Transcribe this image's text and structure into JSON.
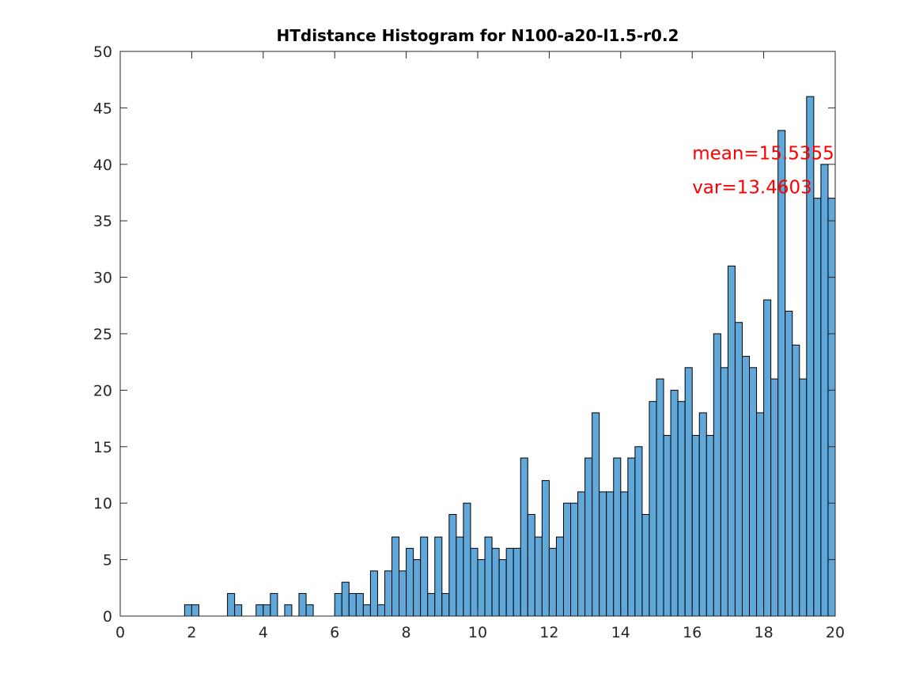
{
  "chart_data": {
    "type": "bar",
    "title": "HTdistance Histogram for N100-a20-l1.5-r0.2",
    "xlabel": "",
    "ylabel": "",
    "xlim": [
      0,
      20
    ],
    "ylim": [
      0,
      50
    ],
    "xticks": [
      0,
      2,
      4,
      6,
      8,
      10,
      12,
      14,
      16,
      18,
      20
    ],
    "yticks": [
      0,
      5,
      10,
      15,
      20,
      25,
      30,
      35,
      40,
      45,
      50
    ],
    "bin_width": 0.2,
    "bins": [
      {
        "x0": 1.8,
        "value": 1
      },
      {
        "x0": 2.0,
        "value": 1
      },
      {
        "x0": 3.0,
        "value": 2
      },
      {
        "x0": 3.2,
        "value": 1
      },
      {
        "x0": 3.8,
        "value": 1
      },
      {
        "x0": 4.0,
        "value": 1
      },
      {
        "x0": 4.2,
        "value": 2
      },
      {
        "x0": 4.6,
        "value": 1
      },
      {
        "x0": 5.0,
        "value": 2
      },
      {
        "x0": 5.2,
        "value": 1
      },
      {
        "x0": 6.0,
        "value": 2
      },
      {
        "x0": 6.2,
        "value": 3
      },
      {
        "x0": 6.4,
        "value": 2
      },
      {
        "x0": 6.6,
        "value": 2
      },
      {
        "x0": 6.8,
        "value": 1
      },
      {
        "x0": 7.0,
        "value": 4
      },
      {
        "x0": 7.2,
        "value": 1
      },
      {
        "x0": 7.4,
        "value": 4
      },
      {
        "x0": 7.6,
        "value": 7
      },
      {
        "x0": 7.8,
        "value": 4
      },
      {
        "x0": 8.0,
        "value": 6
      },
      {
        "x0": 8.2,
        "value": 5
      },
      {
        "x0": 8.4,
        "value": 7
      },
      {
        "x0": 8.6,
        "value": 2
      },
      {
        "x0": 8.8,
        "value": 7
      },
      {
        "x0": 9.0,
        "value": 2
      },
      {
        "x0": 9.2,
        "value": 9
      },
      {
        "x0": 9.4,
        "value": 7
      },
      {
        "x0": 9.6,
        "value": 10
      },
      {
        "x0": 9.8,
        "value": 6
      },
      {
        "x0": 10.0,
        "value": 5
      },
      {
        "x0": 10.2,
        "value": 7
      },
      {
        "x0": 10.4,
        "value": 6
      },
      {
        "x0": 10.6,
        "value": 5
      },
      {
        "x0": 10.8,
        "value": 6
      },
      {
        "x0": 11.0,
        "value": 6
      },
      {
        "x0": 11.2,
        "value": 14
      },
      {
        "x0": 11.4,
        "value": 9
      },
      {
        "x0": 11.6,
        "value": 7
      },
      {
        "x0": 11.8,
        "value": 12
      },
      {
        "x0": 12.0,
        "value": 6
      },
      {
        "x0": 12.2,
        "value": 7
      },
      {
        "x0": 12.4,
        "value": 10
      },
      {
        "x0": 12.6,
        "value": 10
      },
      {
        "x0": 12.8,
        "value": 11
      },
      {
        "x0": 13.0,
        "value": 14
      },
      {
        "x0": 13.2,
        "value": 18
      },
      {
        "x0": 13.4,
        "value": 11
      },
      {
        "x0": 13.6,
        "value": 11
      },
      {
        "x0": 13.8,
        "value": 14
      },
      {
        "x0": 14.0,
        "value": 11
      },
      {
        "x0": 14.2,
        "value": 14
      },
      {
        "x0": 14.4,
        "value": 15
      },
      {
        "x0": 14.6,
        "value": 9
      },
      {
        "x0": 14.8,
        "value": 19
      },
      {
        "x0": 15.0,
        "value": 21
      },
      {
        "x0": 15.2,
        "value": 16
      },
      {
        "x0": 15.4,
        "value": 20
      },
      {
        "x0": 15.6,
        "value": 19
      },
      {
        "x0": 15.8,
        "value": 22
      },
      {
        "x0": 16.0,
        "value": 16
      },
      {
        "x0": 16.2,
        "value": 18
      },
      {
        "x0": 16.4,
        "value": 16
      },
      {
        "x0": 16.6,
        "value": 25
      },
      {
        "x0": 16.8,
        "value": 22
      },
      {
        "x0": 17.0,
        "value": 31
      },
      {
        "x0": 17.2,
        "value": 26
      },
      {
        "x0": 17.4,
        "value": 23
      },
      {
        "x0": 17.6,
        "value": 22
      },
      {
        "x0": 17.8,
        "value": 18
      },
      {
        "x0": 18.0,
        "value": 28
      },
      {
        "x0": 18.2,
        "value": 21
      },
      {
        "x0": 18.4,
        "value": 43
      },
      {
        "x0": 18.6,
        "value": 27
      },
      {
        "x0": 18.8,
        "value": 24
      },
      {
        "x0": 19.0,
        "value": 21
      },
      {
        "x0": 19.2,
        "value": 46
      },
      {
        "x0": 19.4,
        "value": 37
      },
      {
        "x0": 19.6,
        "value": 40
      },
      {
        "x0": 19.8,
        "value": 37
      }
    ],
    "annotations": [
      {
        "text": "mean=15.5355",
        "x": 16.0,
        "y": 41.0
      },
      {
        "text": "var=13.4603",
        "x": 16.0,
        "y": 38.0
      }
    ],
    "colors": {
      "bar_fill": "#5fa8d9",
      "bar_edge": "#000000",
      "annotation": "#ff0000"
    }
  }
}
